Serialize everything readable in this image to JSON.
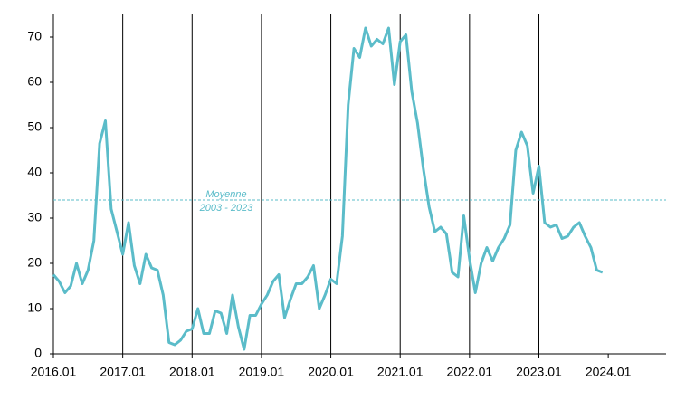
{
  "chart_data": {
    "type": "line",
    "x": [
      "2016.01",
      "2016.02",
      "2016.03",
      "2016.04",
      "2016.05",
      "2016.06",
      "2016.07",
      "2016.08",
      "2016.09",
      "2016.10",
      "2016.11",
      "2016.12",
      "2017.01",
      "2017.02",
      "2017.03",
      "2017.04",
      "2017.05",
      "2017.06",
      "2017.07",
      "2017.08",
      "2017.09",
      "2017.10",
      "2017.11",
      "2017.12",
      "2018.01",
      "2018.02",
      "2018.03",
      "2018.04",
      "2018.05",
      "2018.06",
      "2018.07",
      "2018.08",
      "2018.09",
      "2018.10",
      "2018.11",
      "2018.12",
      "2019.01",
      "2019.02",
      "2019.03",
      "2019.04",
      "2019.05",
      "2019.06",
      "2019.07",
      "2019.08",
      "2019.09",
      "2019.10",
      "2019.11",
      "2019.12",
      "2020.01",
      "2020.02",
      "2020.03",
      "2020.04",
      "2020.05",
      "2020.06",
      "2020.07",
      "2020.08",
      "2020.09",
      "2020.10",
      "2020.11",
      "2020.12",
      "2021.01",
      "2021.02",
      "2021.03",
      "2021.04",
      "2021.05",
      "2021.06",
      "2021.07",
      "2021.08",
      "2021.09",
      "2021.10",
      "2021.11",
      "2021.12",
      "2022.01",
      "2022.02",
      "2022.03",
      "2022.04",
      "2022.05",
      "2022.06",
      "2022.07",
      "2022.08",
      "2022.09",
      "2022.10",
      "2022.11",
      "2022.12",
      "2023.01",
      "2023.02",
      "2023.03",
      "2023.04",
      "2023.05",
      "2023.06",
      "2023.07",
      "2023.08",
      "2023.09",
      "2023.10",
      "2023.11",
      "2023.12"
    ],
    "values": [
      17.5,
      16,
      13.5,
      15,
      20,
      15.5,
      18.5,
      25,
      46.5,
      51.5,
      32,
      27,
      22,
      29,
      19.5,
      15.5,
      22,
      19,
      18.5,
      13,
      2.5,
      2,
      3,
      5,
      5.5,
      10,
      4.5,
      4.5,
      9.5,
      9,
      4.5,
      13,
      6,
      1,
      8.5,
      8.5,
      11,
      13,
      16,
      17.5,
      8,
      12,
      15.5,
      15.5,
      17,
      19.5,
      10,
      13,
      16.5,
      15.5,
      26,
      55,
      67.5,
      65.5,
      72,
      68,
      69.5,
      68.5,
      72,
      59.5,
      69,
      70.5,
      58,
      51,
      41,
      32.5,
      27,
      28,
      26.5,
      18,
      17,
      30.5,
      21,
      13.5,
      20,
      23.5,
      20.5,
      23.5,
      25.5,
      28.5,
      45,
      49,
      46,
      35.5,
      41.5,
      29,
      28,
      28.5,
      25.5,
      26,
      28,
      29,
      26,
      23.5,
      18.5,
      18
    ],
    "color": "#5bbcc9",
    "xlim": [
      "2016.01",
      "2024.11"
    ],
    "xticks": [
      "2016.01",
      "2017.01",
      "2018.01",
      "2019.01",
      "2020.01",
      "2021.01",
      "2022.01",
      "2023.01",
      "2024.01"
    ],
    "ylim": [
      0,
      75
    ],
    "yticks": [
      0,
      10,
      20,
      30,
      40,
      50,
      60,
      70
    ],
    "reference_line": {
      "value": 34,
      "label": [
        "Moyenne",
        "2003 - 2023"
      ],
      "color": "#5bbcc9"
    }
  }
}
